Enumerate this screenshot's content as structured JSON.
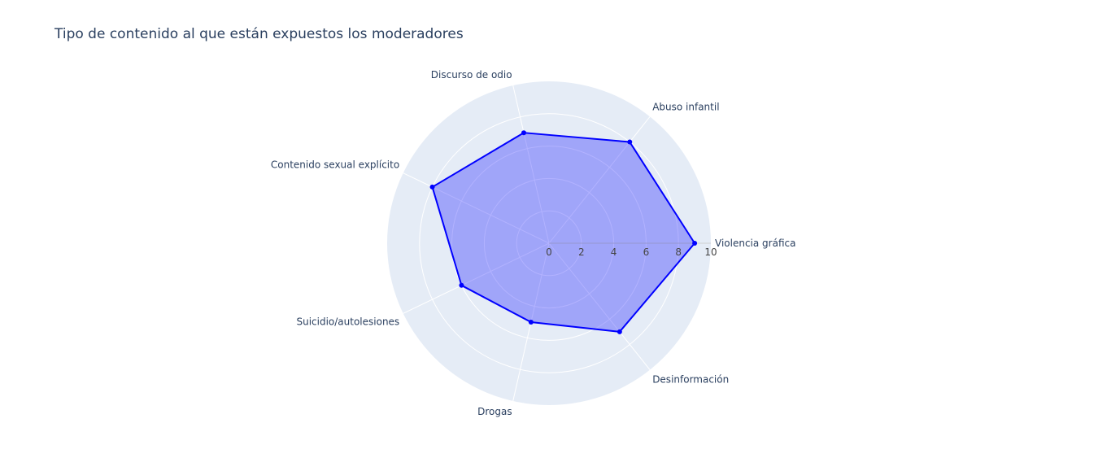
{
  "chart_data": {
    "type": "radar",
    "title": "Tipo de contenido al que están expuestos los moderadores",
    "categories": [
      "Violencia gráfica",
      "Abuso infantil",
      "Discurso de odio",
      "Contenido sexual explícito",
      "Suicidio/autolesiones",
      "Drogas",
      "Desinformación"
    ],
    "values": [
      9,
      8,
      7,
      8,
      6,
      5,
      7
    ],
    "radial_range": [
      0,
      10
    ],
    "radial_ticks": [
      "0",
      "2",
      "4",
      "6",
      "8",
      "10"
    ],
    "grid": true,
    "colors": {
      "line": "#0000ff",
      "fill": "rgba(0,0,255,0.3)",
      "polar_bg": "#e5ecf6",
      "grid": "#ffffff"
    }
  }
}
